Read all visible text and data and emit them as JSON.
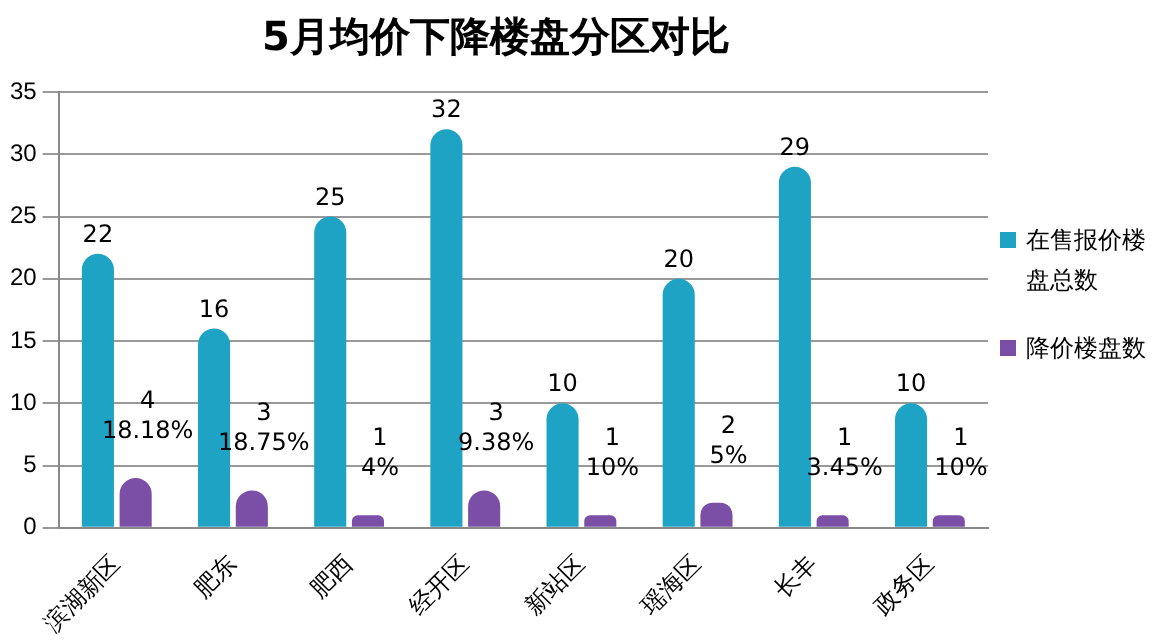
{
  "chart_data": {
    "type": "bar",
    "title": "5月均价下降楼盘分区对比",
    "categories": [
      "滨湖新区",
      "肥东",
      "肥西",
      "经开区",
      "新站区",
      "瑶海区",
      "长丰",
      "政务区"
    ],
    "series": [
      {
        "name": "在售报价楼盘总数",
        "color": "#1fa3c4",
        "values": [
          22,
          16,
          25,
          32,
          10,
          20,
          29,
          10
        ],
        "value_labels": [
          "22",
          "16",
          "25",
          "32",
          "10",
          "20",
          "29",
          "10"
        ]
      },
      {
        "name": "降价楼盘数",
        "color": "#7b4fa6",
        "values": [
          4,
          3,
          1,
          3,
          1,
          2,
          1,
          1
        ],
        "value_labels": [
          "4\n18.18%",
          "3\n18.75%",
          "1\n4%",
          "3\n9.38%",
          "1\n10%",
          "2\n5%",
          "1\n3.45%",
          "1\n10%"
        ]
      }
    ],
    "ylim": [
      0,
      35
    ],
    "yticks": [
      0,
      5,
      10,
      15,
      20,
      25,
      30,
      35
    ],
    "grid": "y",
    "legend": "right"
  }
}
